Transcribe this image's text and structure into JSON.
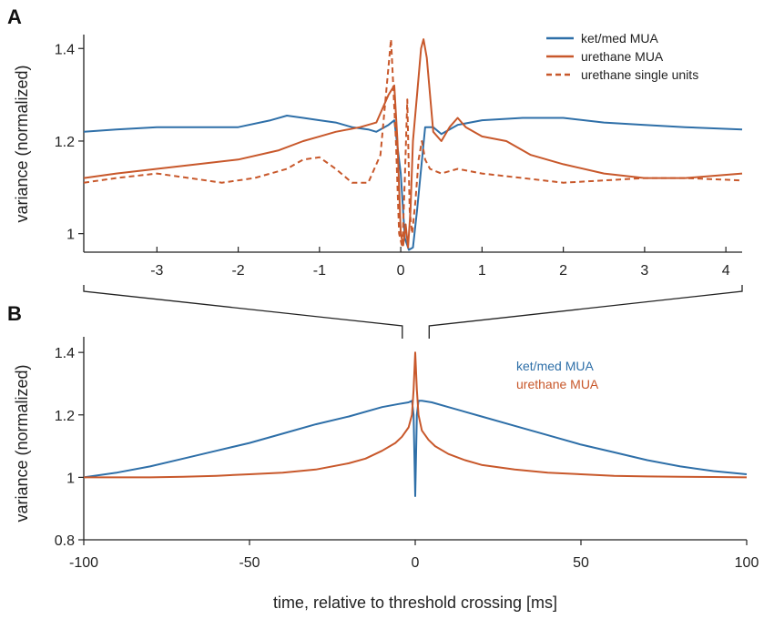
{
  "colors": {
    "ket": "#2e6fa8",
    "ure": "#c8582b",
    "axis": "#222222"
  },
  "chart_data": [
    {
      "panel": "A",
      "type": "line",
      "ylabel": "variance (normalized)",
      "xlabel": "",
      "xlim": [
        -3.9,
        4.2
      ],
      "ylim": [
        0.96,
        1.43
      ],
      "xticks": [
        -3,
        -2,
        -1,
        0,
        1,
        2,
        3,
        4
      ],
      "xtick_labels": [
        "-3",
        "-2",
        "-1",
        "0",
        "1",
        "2",
        "3",
        "4"
      ],
      "yticks": [
        1,
        1.2,
        1.4
      ],
      "ytick_labels": [
        "1",
        "1.2",
        "1.4"
      ],
      "legend_position": "top-right",
      "series": [
        {
          "name": "ket/med MUA",
          "color_key": "ket",
          "style": "solid",
          "x": [
            -3.9,
            -3.5,
            -3.0,
            -2.5,
            -2.0,
            -1.6,
            -1.4,
            -1.2,
            -1.0,
            -0.8,
            -0.6,
            -0.4,
            -0.3,
            -0.15,
            -0.08,
            0.0,
            0.05,
            0.1,
            0.15,
            0.2,
            0.3,
            0.4,
            0.5,
            0.7,
            1.0,
            1.5,
            2.0,
            2.5,
            3.0,
            3.5,
            4.2
          ],
          "y": [
            1.22,
            1.225,
            1.23,
            1.23,
            1.23,
            1.245,
            1.255,
            1.25,
            1.245,
            1.24,
            1.23,
            1.225,
            1.22,
            1.235,
            1.245,
            1.13,
            0.99,
            0.965,
            0.97,
            1.05,
            1.23,
            1.23,
            1.215,
            1.235,
            1.245,
            1.25,
            1.25,
            1.24,
            1.235,
            1.23,
            1.225
          ]
        },
        {
          "name": "urethane MUA",
          "color_key": "ure",
          "style": "solid",
          "x": [
            -3.9,
            -3.5,
            -3.0,
            -2.5,
            -2.0,
            -1.5,
            -1.2,
            -1.0,
            -0.8,
            -0.5,
            -0.3,
            -0.15,
            -0.08,
            -0.04,
            0.0,
            0.03,
            0.06,
            0.09,
            0.12,
            0.15,
            0.2,
            0.25,
            0.28,
            0.32,
            0.4,
            0.5,
            0.6,
            0.7,
            0.8,
            1.0,
            1.3,
            1.6,
            2.0,
            2.5,
            3.0,
            3.5,
            4.2
          ],
          "y": [
            1.12,
            1.13,
            1.14,
            1.15,
            1.16,
            1.18,
            1.2,
            1.21,
            1.22,
            1.23,
            1.24,
            1.3,
            1.32,
            1.2,
            1.0,
            0.975,
            1.02,
            0.97,
            1.05,
            1.2,
            1.3,
            1.4,
            1.42,
            1.38,
            1.22,
            1.2,
            1.23,
            1.25,
            1.23,
            1.21,
            1.2,
            1.17,
            1.15,
            1.13,
            1.12,
            1.12,
            1.13
          ]
        },
        {
          "name": "urethane single units",
          "color_key": "ure",
          "style": "dashed",
          "x": [
            -3.9,
            -3.5,
            -3.0,
            -2.6,
            -2.2,
            -1.8,
            -1.4,
            -1.2,
            -1.0,
            -0.8,
            -0.6,
            -0.4,
            -0.25,
            -0.12,
            -0.06,
            -0.02,
            0.02,
            0.05,
            0.08,
            0.11,
            0.14,
            0.18,
            0.22,
            0.26,
            0.3,
            0.36,
            0.5,
            0.7,
            1.0,
            1.5,
            2.0,
            2.5,
            3.0,
            3.5,
            4.2
          ],
          "y": [
            1.11,
            1.12,
            1.13,
            1.12,
            1.11,
            1.12,
            1.14,
            1.16,
            1.165,
            1.14,
            1.11,
            1.11,
            1.17,
            1.42,
            1.2,
            1.0,
            0.97,
            1.12,
            1.29,
            1.05,
            1.0,
            1.07,
            1.16,
            1.2,
            1.16,
            1.14,
            1.13,
            1.14,
            1.13,
            1.12,
            1.11,
            1.115,
            1.12,
            1.12,
            1.115
          ]
        }
      ]
    },
    {
      "panel": "B",
      "type": "line",
      "ylabel": "variance (normalized)",
      "xlabel": "time, relative to threshold crossing [ms]",
      "xlim": [
        -100,
        100
      ],
      "ylim": [
        0.8,
        1.45
      ],
      "xticks": [
        -100,
        -50,
        0,
        50,
        100
      ],
      "xtick_labels": [
        "-100",
        "-50",
        "0",
        "50",
        "100"
      ],
      "yticks": [
        0.8,
        1,
        1.2,
        1.4
      ],
      "ytick_labels": [
        "0.8",
        "1",
        "1.2",
        "1.4"
      ],
      "legend_position": "top-right",
      "series": [
        {
          "name": "ket/med MUA",
          "color_key": "ket",
          "style": "solid",
          "x": [
            -100,
            -90,
            -80,
            -70,
            -60,
            -50,
            -40,
            -30,
            -20,
            -10,
            -5,
            -2,
            -1,
            -0.5,
            0,
            0.5,
            1,
            2,
            5,
            10,
            20,
            30,
            40,
            50,
            60,
            70,
            80,
            90,
            100
          ],
          "y": [
            1.0,
            1.015,
            1.035,
            1.06,
            1.085,
            1.11,
            1.14,
            1.17,
            1.195,
            1.225,
            1.235,
            1.24,
            1.245,
            1.2,
            0.94,
            1.2,
            1.245,
            1.245,
            1.24,
            1.225,
            1.195,
            1.165,
            1.135,
            1.105,
            1.08,
            1.055,
            1.035,
            1.02,
            1.01
          ]
        },
        {
          "name": "urethane MUA",
          "color_key": "ure",
          "style": "solid",
          "x": [
            -100,
            -90,
            -80,
            -70,
            -60,
            -50,
            -40,
            -30,
            -20,
            -15,
            -10,
            -6,
            -4,
            -2,
            -1,
            -0.5,
            0,
            0.5,
            1,
            2,
            4,
            6,
            10,
            15,
            20,
            30,
            40,
            50,
            60,
            70,
            80,
            90,
            100
          ],
          "y": [
            1.0,
            1.0,
            1.0,
            1.002,
            1.005,
            1.01,
            1.015,
            1.025,
            1.045,
            1.06,
            1.085,
            1.11,
            1.13,
            1.16,
            1.2,
            1.28,
            1.4,
            1.28,
            1.2,
            1.15,
            1.12,
            1.1,
            1.075,
            1.055,
            1.04,
            1.025,
            1.015,
            1.01,
            1.005,
            1.003,
            1.002,
            1.001,
            1.0
          ]
        }
      ]
    }
  ],
  "connector": "zoom"
}
